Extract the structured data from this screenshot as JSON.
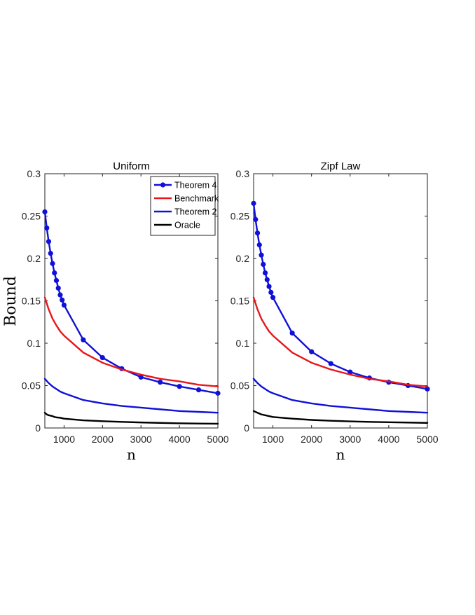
{
  "shared": {
    "ylabel": "Bound",
    "xlabel": "n"
  },
  "chart_data": [
    {
      "type": "line",
      "title": "Uniform",
      "xlabel": "n",
      "ylabel": "Bound",
      "xlim": [
        500,
        5000
      ],
      "ylim": [
        0,
        0.3
      ],
      "xticks": [
        1000,
        2000,
        3000,
        4000,
        5000
      ],
      "yticks": [
        0,
        0.05,
        0.1,
        0.15,
        0.2,
        0.25,
        0.3
      ],
      "ytick_labels": [
        "0",
        "0.05",
        "0.1",
        "0.15",
        "0.2",
        "0.25",
        "0.3"
      ],
      "legend": {
        "show": true,
        "placement": "top-right"
      },
      "series": [
        {
          "name": "Theorem 4",
          "color": "#1010d8",
          "markers": true,
          "x": [
            500,
            550,
            600,
            650,
            700,
            750,
            800,
            850,
            900,
            950,
            1000,
            1500,
            2000,
            2500,
            3000,
            3500,
            4000,
            4500,
            5000
          ],
          "y": [
            0.255,
            0.236,
            0.22,
            0.206,
            0.194,
            0.183,
            0.174,
            0.165,
            0.157,
            0.151,
            0.145,
            0.104,
            0.083,
            0.07,
            0.06,
            0.054,
            0.049,
            0.045,
            0.041
          ]
        },
        {
          "name": "Benchmark",
          "color": "#e8161a",
          "markers": false,
          "x": [
            500,
            600,
            700,
            800,
            900,
            1000,
            1500,
            2000,
            2500,
            3000,
            3500,
            4000,
            4500,
            5000
          ],
          "y": [
            0.154,
            0.14,
            0.129,
            0.121,
            0.114,
            0.109,
            0.089,
            0.077,
            0.069,
            0.063,
            0.058,
            0.055,
            0.051,
            0.049
          ]
        },
        {
          "name": "Theorem 2",
          "color": "#1010d8",
          "markers": false,
          "x": [
            500,
            600,
            700,
            800,
            900,
            1000,
            1500,
            2000,
            2500,
            3000,
            3500,
            4000,
            4500,
            5000
          ],
          "y": [
            0.058,
            0.053,
            0.049,
            0.046,
            0.043,
            0.041,
            0.033,
            0.029,
            0.026,
            0.024,
            0.022,
            0.02,
            0.019,
            0.018
          ]
        },
        {
          "name": "Oracle",
          "color": "#000000",
          "markers": false,
          "x": [
            500,
            550,
            600,
            700,
            750,
            800,
            900,
            1000,
            1500,
            2000,
            2500,
            3000,
            3500,
            4000,
            4500,
            5000
          ],
          "y": [
            0.018,
            0.016,
            0.015,
            0.014,
            0.013,
            0.0125,
            0.012,
            0.011,
            0.009,
            0.008,
            0.0072,
            0.0065,
            0.006,
            0.0055,
            0.0052,
            0.005
          ]
        }
      ]
    },
    {
      "type": "line",
      "title": "Zipf Law",
      "xlabel": "n",
      "ylabel": "",
      "xlim": [
        500,
        5000
      ],
      "ylim": [
        0,
        0.3
      ],
      "xticks": [
        1000,
        2000,
        3000,
        4000,
        5000
      ],
      "yticks": [
        0,
        0.05,
        0.1,
        0.15,
        0.2,
        0.25,
        0.3
      ],
      "ytick_labels": [
        "0",
        "0.05",
        "0.1",
        "0.15",
        "0.2",
        "0.25",
        "0.3"
      ],
      "legend": {
        "show": false
      },
      "series": [
        {
          "name": "Theorem 4",
          "color": "#1010d8",
          "markers": true,
          "x": [
            500,
            550,
            600,
            650,
            700,
            750,
            800,
            850,
            900,
            950,
            1000,
            1500,
            2000,
            2500,
            3000,
            3500,
            4000,
            4500,
            5000
          ],
          "y": [
            0.265,
            0.246,
            0.23,
            0.216,
            0.204,
            0.193,
            0.183,
            0.175,
            0.167,
            0.16,
            0.154,
            0.112,
            0.09,
            0.076,
            0.066,
            0.059,
            0.054,
            0.05,
            0.046
          ]
        },
        {
          "name": "Benchmark",
          "color": "#e8161a",
          "markers": false,
          "x": [
            500,
            600,
            700,
            800,
            900,
            1000,
            1500,
            2000,
            2500,
            3000,
            3500,
            4000,
            4500,
            5000
          ],
          "y": [
            0.154,
            0.14,
            0.129,
            0.121,
            0.114,
            0.109,
            0.089,
            0.077,
            0.069,
            0.063,
            0.058,
            0.055,
            0.051,
            0.049
          ]
        },
        {
          "name": "Theorem 2",
          "color": "#1010d8",
          "markers": false,
          "x": [
            500,
            600,
            700,
            800,
            900,
            1000,
            1500,
            2000,
            2500,
            3000,
            3500,
            4000,
            4500,
            5000
          ],
          "y": [
            0.058,
            0.053,
            0.049,
            0.046,
            0.043,
            0.041,
            0.033,
            0.029,
            0.026,
            0.024,
            0.022,
            0.02,
            0.019,
            0.018
          ]
        },
        {
          "name": "Oracle",
          "color": "#000000",
          "markers": false,
          "x": [
            500,
            600,
            700,
            800,
            900,
            1000,
            1500,
            2000,
            2500,
            3000,
            3500,
            4000,
            4500,
            5000
          ],
          "y": [
            0.02,
            0.018,
            0.016,
            0.015,
            0.014,
            0.013,
            0.011,
            0.0095,
            0.0085,
            0.0078,
            0.0072,
            0.0068,
            0.0064,
            0.006
          ]
        }
      ]
    }
  ]
}
